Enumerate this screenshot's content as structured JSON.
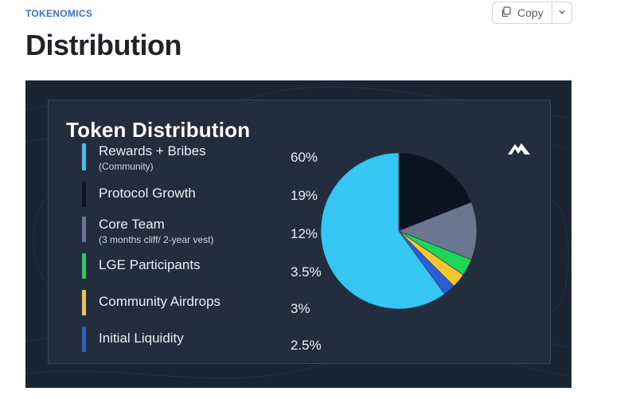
{
  "header": {
    "eyebrow": "TOKENOMICS",
    "title": "Distribution",
    "copy_label": "Copy"
  },
  "banner": {
    "title": "Token Distribution",
    "legend": [
      {
        "label": "Rewards + Bribes",
        "sub": "(Community)",
        "pct": "60%",
        "color": "#35c6f4"
      },
      {
        "label": "Protocol Growth",
        "sub": "",
        "pct": "19%",
        "color": "#0b1420"
      },
      {
        "label": "Core Team",
        "sub": "(3 months cliff/ 2-year vest)",
        "pct": "12%",
        "color": "#6b7790"
      },
      {
        "label": "LGE Participants",
        "sub": "",
        "pct": "3.5%",
        "color": "#1ad75a"
      },
      {
        "label": "Community Airdrops",
        "sub": "",
        "pct": "3%",
        "color": "#f7c531"
      },
      {
        "label": "Initial Liquidity",
        "sub": "",
        "pct": "2.5%",
        "color": "#2a5ed8"
      }
    ]
  },
  "chart_data": {
    "type": "pie",
    "title": "Token Distribution",
    "categories": [
      "Rewards + Bribes",
      "Protocol Growth",
      "Core Team",
      "LGE Participants",
      "Community Airdrops",
      "Initial Liquidity"
    ],
    "values": [
      60,
      19,
      12,
      3.5,
      3,
      2.5
    ],
    "colors": [
      "#35c6f4",
      "#0b1420",
      "#6b7790",
      "#1ad75a",
      "#f7c531",
      "#2a5ed8"
    ]
  }
}
